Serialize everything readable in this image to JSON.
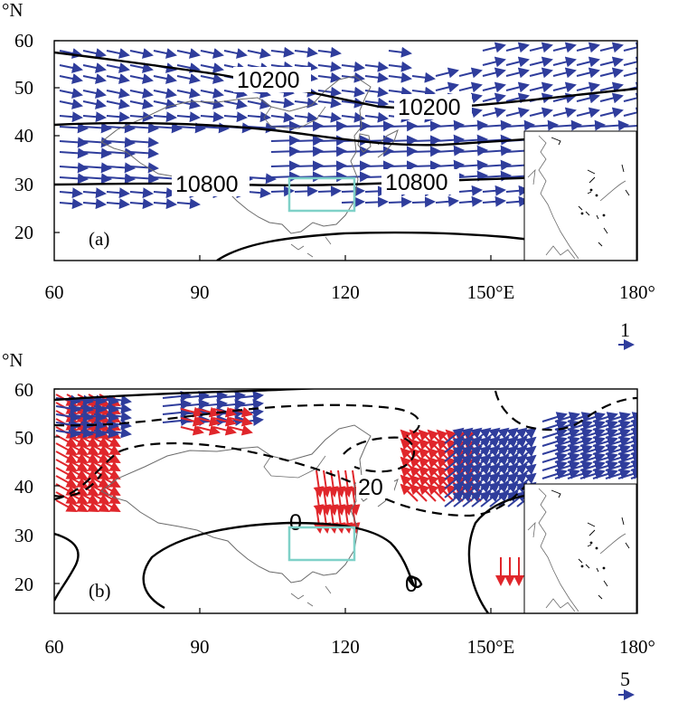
{
  "units": {
    "lat": "°N"
  },
  "x_ticks": [
    "60",
    "90",
    "120",
    "150°E",
    "180°"
  ],
  "y_ticks": [
    "60",
    "50",
    "40",
    "30",
    "20"
  ],
  "panels": [
    {
      "label": "(a)",
      "contour_labels": [
        "10200",
        "10200",
        "10800",
        "10800"
      ],
      "reference_vector": "1",
      "vector_colors": [
        "#2f3d9c"
      ]
    },
    {
      "label": "(b)",
      "contour_labels": [
        "20",
        "0",
        "0"
      ],
      "reference_vector": "5",
      "vector_colors": [
        "#2f3d9c",
        "#e0262b"
      ]
    }
  ],
  "colors": {
    "box": "#7fd1c8",
    "contour": "#000000",
    "coast": "#6b6b6b"
  }
}
